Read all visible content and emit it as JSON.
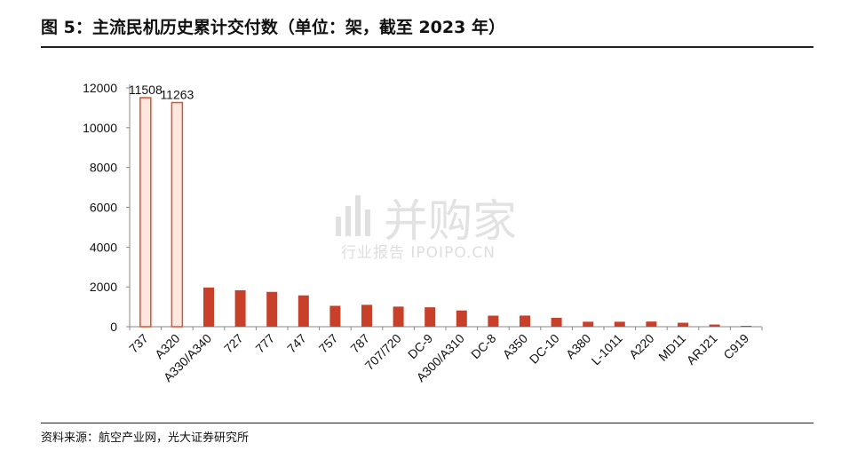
{
  "title": "图 5：主流民机历史累计交付数（单位：架，截至 2023 年）",
  "source": "资料来源：航空产业网，光大证券研究所",
  "watermark": {
    "main": "并购家",
    "sub": "行业报告 IPOIPO.CN"
  },
  "colors": {
    "bar": "#c8402a",
    "highlight_fill": "#fde8e0",
    "highlight_stroke": "#d9542f"
  },
  "chart_data": {
    "type": "bar",
    "categories": [
      "737",
      "A320",
      "A330/A340",
      "727",
      "777",
      "747",
      "757",
      "787",
      "707/720",
      "DC-9",
      "A300/A310",
      "DC-8",
      "A350",
      "DC-10",
      "A380",
      "L-1011",
      "A220",
      "MD11",
      "ARJ21",
      "C919"
    ],
    "values": [
      11508,
      11263,
      1970,
      1832,
      1750,
      1574,
      1050,
      1100,
      1010,
      976,
      816,
      556,
      560,
      446,
      251,
      250,
      260,
      200,
      110,
      4
    ],
    "data_labels": [
      "11508",
      "11263",
      "",
      "",
      "",
      "",
      "",
      "",
      "",
      "",
      "",
      "",
      "",
      "",
      "",
      "",
      "",
      "",
      "",
      ""
    ],
    "highlighted": [
      "737",
      "A320"
    ],
    "y_ticks": [
      "0",
      "2000",
      "4000",
      "6000",
      "8000",
      "10000",
      "12000"
    ],
    "ylim": [
      0,
      12000
    ],
    "xlabel": "",
    "ylabel": "",
    "grid": false,
    "legend": "none"
  }
}
